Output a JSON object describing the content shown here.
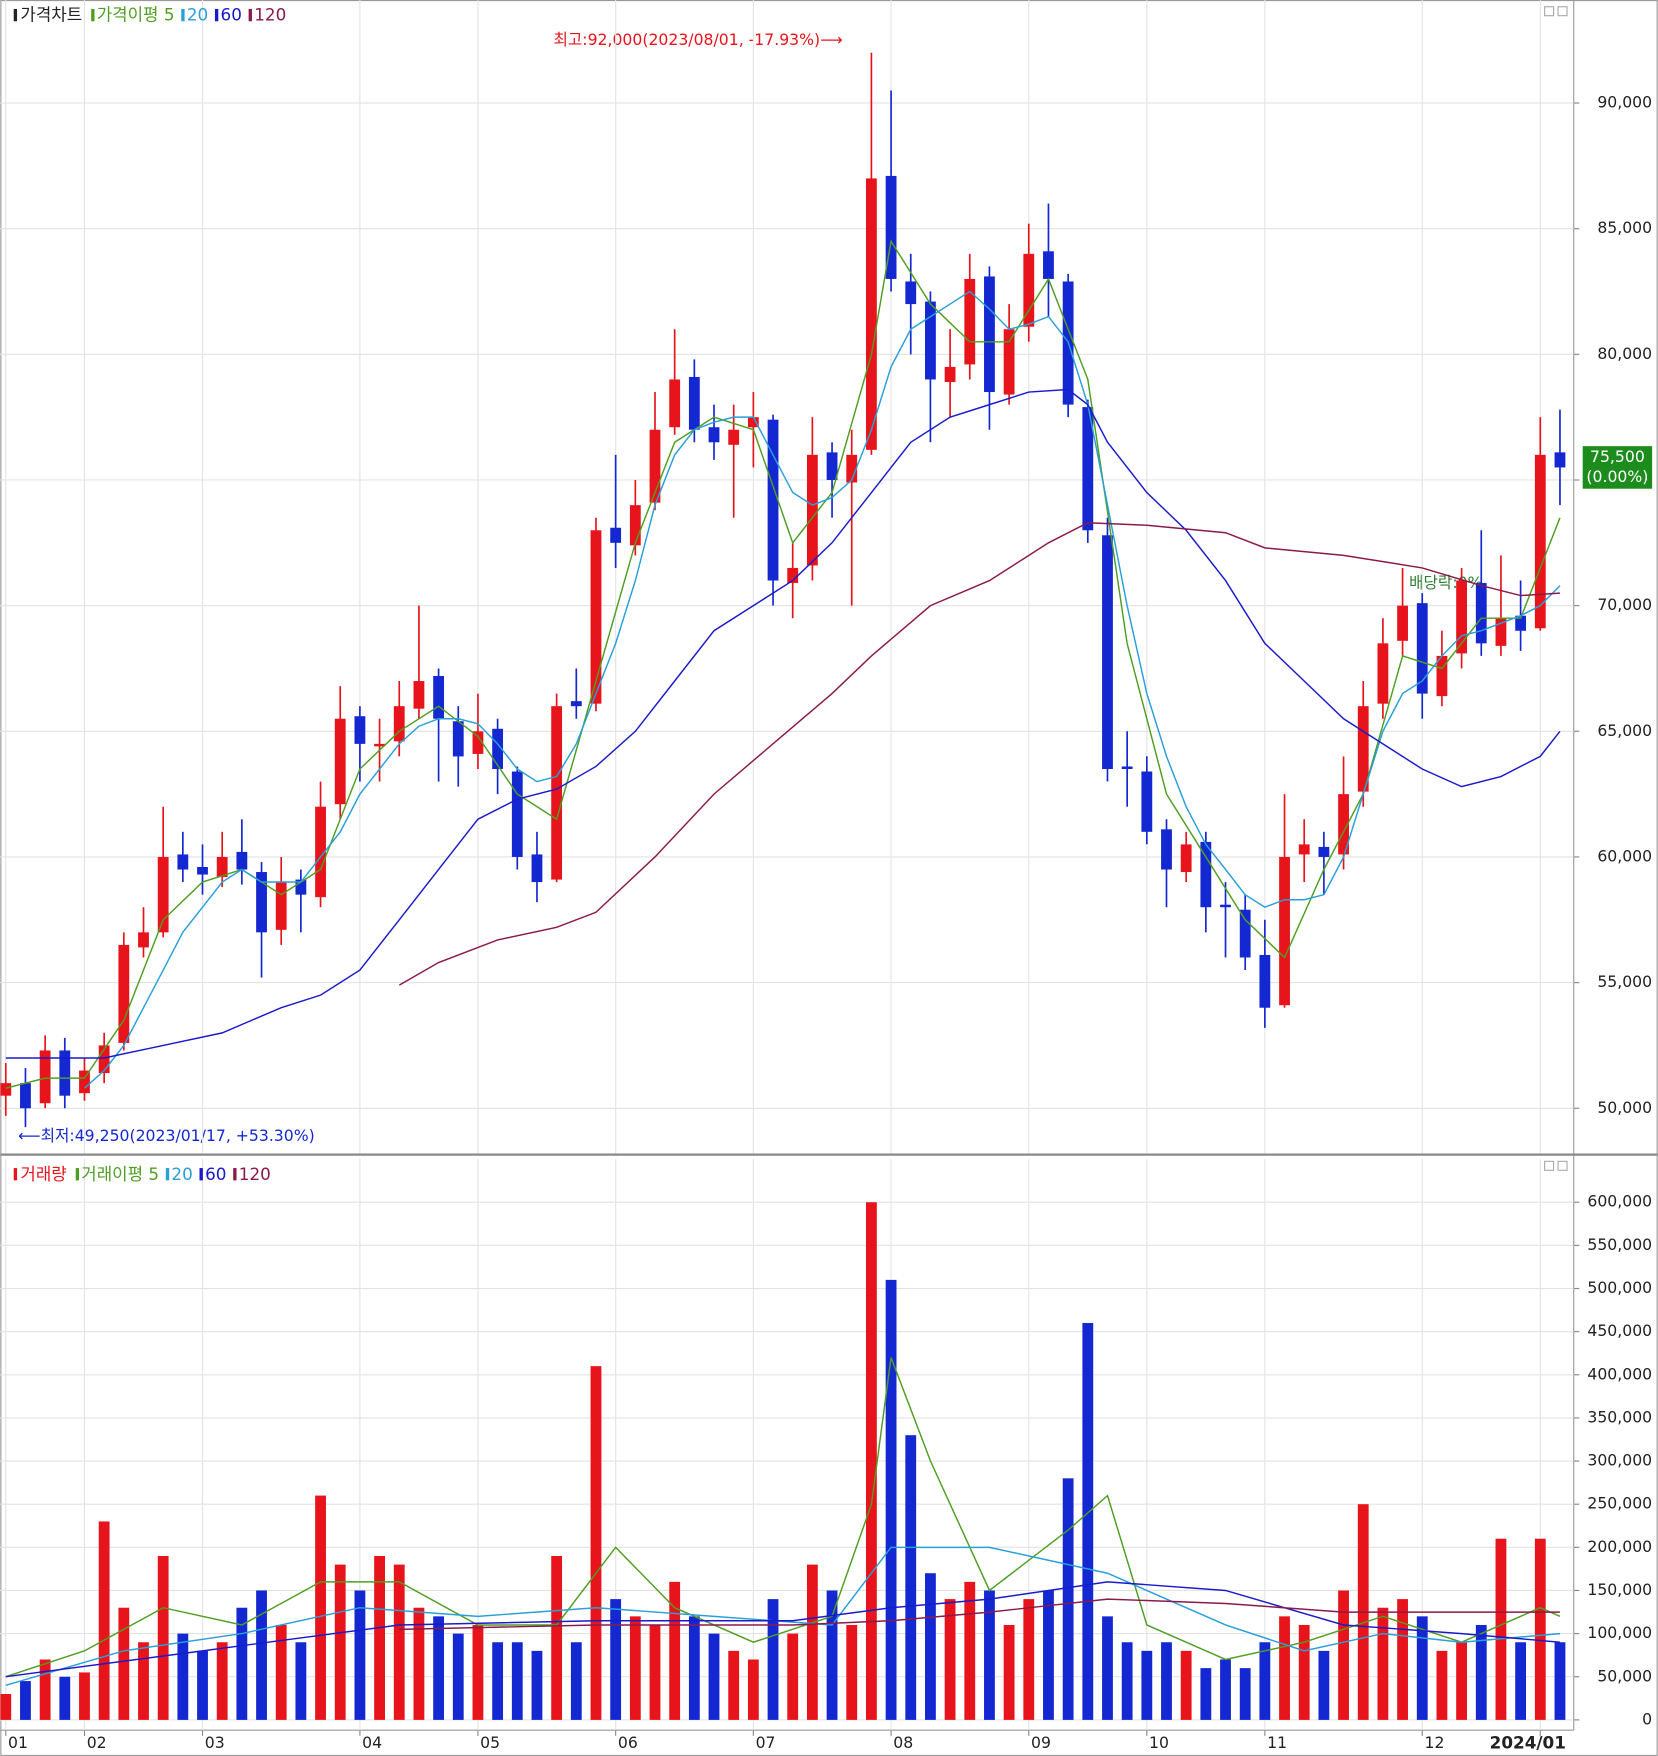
{
  "chart_data": [
    {
      "type": "candlestick",
      "title": "가격차트",
      "annotations": {
        "high": "최고:92,000(2023/08/01, -17.93%)⟶",
        "low": "⟵최저:49,250(2023/01/17, +53.30%)",
        "ex_dividend": "배당락:0%",
        "last_label": "75,500",
        "last_change": "(0.00%)"
      },
      "up_color": "#e8141b",
      "down_color": "#1428d2",
      "xlim": [
        -0.28,
        79.7
      ],
      "ylim": [
        48200,
        94100
      ],
      "yticks": [
        {
          "value": 50000,
          "label": "50,000"
        },
        {
          "value": 55000,
          "label": "55,000"
        },
        {
          "value": 60000,
          "label": "60,000"
        },
        {
          "value": 65000,
          "label": "65,000"
        },
        {
          "value": 70000,
          "label": "70,000"
        },
        {
          "value": 75000,
          "label": "75,000"
        },
        {
          "value": 80000,
          "label": "80,000"
        },
        {
          "value": 85000,
          "label": "85,000"
        },
        {
          "value": 90000,
          "label": "90,000"
        }
      ],
      "grid": true,
      "open": [
        50500,
        51000,
        50200,
        52300,
        50600,
        51400,
        52600,
        56400,
        57000,
        60100,
        59600,
        59200,
        60200,
        59400,
        57100,
        59100,
        58400,
        62100,
        65600,
        64400,
        64600,
        65900,
        67200,
        65400,
        64100,
        65100,
        63400,
        60100,
        59100,
        66200,
        66100,
        73100,
        72400,
        74100,
        77100,
        79100,
        77100,
        76400,
        77100,
        77400,
        70900,
        71600,
        76100,
        74900,
        76200,
        87100,
        82900,
        82100,
        78900,
        79600,
        83100,
        78400,
        81100,
        84100,
        82900,
        77900,
        72800,
        63600,
        63400,
        61100,
        59400,
        60600,
        58100,
        57900,
        56100,
        54100,
        60100,
        60400,
        60100,
        62600,
        66100,
        68600,
        70100,
        66400,
        68100,
        70900,
        68400,
        69600,
        69100,
        76100
      ],
      "high": [
        51800,
        51600,
        52900,
        52800,
        52000,
        53000,
        57000,
        58000,
        62000,
        61000,
        60500,
        61000,
        61500,
        59800,
        60000,
        59500,
        63000,
        66800,
        66000,
        65500,
        67000,
        70000,
        67500,
        66000,
        66500,
        65500,
        63600,
        61000,
        66500,
        67500,
        73500,
        76000,
        75000,
        78500,
        81000,
        79800,
        78000,
        78000,
        78500,
        77600,
        72500,
        77500,
        76500,
        77000,
        92000,
        90500,
        84000,
        82500,
        81000,
        84000,
        83500,
        82000,
        85200,
        86000,
        83200,
        78200,
        73500,
        65000,
        64000,
        61500,
        61000,
        61000,
        59000,
        58500,
        57500,
        62500,
        61500,
        61000,
        64000,
        67000,
        69500,
        71500,
        70500,
        69000,
        71500,
        73000,
        72000,
        71000,
        77500,
        77800
      ],
      "low": [
        49700,
        49250,
        50000,
        50000,
        50300,
        51000,
        52300,
        56000,
        56800,
        59000,
        58500,
        58800,
        58900,
        55200,
        56500,
        57000,
        58000,
        61500,
        63000,
        63000,
        64000,
        65500,
        63000,
        62800,
        63500,
        62500,
        59500,
        58200,
        59000,
        65500,
        65800,
        71500,
        72000,
        73800,
        76800,
        76500,
        75800,
        73500,
        75500,
        70000,
        69500,
        71000,
        73500,
        70000,
        76000,
        82500,
        80000,
        76500,
        77500,
        79000,
        77000,
        78000,
        80500,
        81500,
        77500,
        72500,
        63000,
        62000,
        60500,
        58000,
        59000,
        57000,
        56000,
        55500,
        53200,
        54000,
        59000,
        58500,
        59500,
        62000,
        65500,
        68000,
        65500,
        66000,
        67500,
        68000,
        68000,
        68200,
        69000,
        74000
      ],
      "close": [
        51000,
        50000,
        52300,
        50500,
        51500,
        52500,
        56500,
        57000,
        60000,
        59500,
        59300,
        60000,
        59500,
        57000,
        59000,
        58500,
        62000,
        65500,
        64500,
        64500,
        66000,
        67000,
        65500,
        64000,
        65000,
        63500,
        60000,
        59000,
        66000,
        66000,
        73000,
        72500,
        74000,
        77000,
        79000,
        77000,
        76500,
        77000,
        77500,
        71000,
        71500,
        76000,
        75000,
        76000,
        87000,
        83000,
        82000,
        79000,
        79500,
        83000,
        78500,
        81000,
        84000,
        83000,
        78000,
        73000,
        63500,
        63500,
        61000,
        59500,
        60500,
        58000,
        58000,
        56000,
        54000,
        60000,
        60500,
        60000,
        62500,
        66000,
        68500,
        70000,
        66500,
        68000,
        71000,
        68500,
        69500,
        69000,
        76000,
        75500
      ],
      "series": [
        {
          "name": "가격이평 5",
          "color": "#4f9e22",
          "x": [
            0,
            2,
            4,
            6,
            8,
            10,
            12,
            14,
            16,
            18,
            20,
            22,
            24,
            26,
            28,
            30,
            32,
            34,
            36,
            38,
            40,
            42,
            44,
            45,
            47,
            49,
            51,
            53,
            55,
            57,
            59,
            61,
            63,
            65,
            67,
            69,
            71,
            73,
            75,
            77,
            79
          ],
          "values": [
            50800,
            51200,
            51200,
            53500,
            57500,
            59000,
            59500,
            58500,
            59500,
            63500,
            65000,
            66000,
            64800,
            62500,
            61500,
            67000,
            72500,
            76500,
            77500,
            77000,
            72500,
            74500,
            80000,
            84500,
            82000,
            80500,
            80500,
            83000,
            79000,
            68500,
            62500,
            60000,
            57500,
            56000,
            59500,
            62500,
            68000,
            67500,
            69500,
            69500,
            73500
          ]
        },
        {
          "name": "20",
          "color": "#2a9fd8",
          "x": [
            4,
            5,
            6,
            7,
            8,
            9,
            10,
            11,
            12,
            13,
            14,
            15,
            16,
            17,
            18,
            19,
            20,
            21,
            22,
            23,
            24,
            25,
            26,
            27,
            28,
            29,
            30,
            31,
            32,
            33,
            34,
            35,
            36,
            37,
            38,
            39,
            40,
            41,
            42,
            43,
            44,
            45,
            46,
            47,
            48,
            49,
            50,
            51,
            52,
            53,
            54,
            55,
            56,
            57,
            58,
            59,
            60,
            61,
            62,
            63,
            64,
            65,
            66,
            67,
            68,
            69,
            70,
            71,
            72,
            73,
            74,
            75,
            76,
            77,
            78,
            79
          ],
          "values": [
            50800,
            51500,
            52500,
            54000,
            55500,
            57000,
            58000,
            59000,
            59500,
            59000,
            59000,
            59000,
            60000,
            61000,
            62500,
            63500,
            64500,
            65200,
            65500,
            65500,
            65300,
            64500,
            63500,
            63000,
            63200,
            64500,
            66500,
            68500,
            71000,
            74000,
            76000,
            77000,
            77300,
            77500,
            77500,
            76000,
            74500,
            74000,
            74300,
            75000,
            77000,
            79500,
            81000,
            81500,
            82000,
            82500,
            81800,
            81000,
            81200,
            81500,
            80500,
            78000,
            74000,
            70000,
            66500,
            64000,
            62000,
            60500,
            59500,
            58500,
            58000,
            58300,
            58300,
            58500,
            60000,
            62500,
            65000,
            66500,
            67000,
            68000,
            68800,
            69000,
            69300,
            69600,
            70000,
            70800
          ]
        },
        {
          "name": "60",
          "color": "#1a1acc",
          "x": [
            0,
            3,
            5,
            8,
            11,
            14,
            16,
            18,
            20,
            22,
            24,
            26,
            28,
            30,
            32,
            34,
            36,
            38,
            40,
            42,
            44,
            46,
            48,
            50,
            52,
            54,
            55,
            56,
            58,
            60,
            62,
            64,
            66,
            68,
            70,
            72,
            74,
            76,
            78,
            79
          ],
          "values": [
            52000,
            52000,
            52000,
            52500,
            53000,
            54000,
            54500,
            55500,
            57500,
            59500,
            61500,
            62300,
            62700,
            63600,
            65000,
            67000,
            69000,
            70000,
            71000,
            72500,
            74500,
            76500,
            77500,
            78000,
            78500,
            78600,
            78000,
            76500,
            74500,
            73000,
            71000,
            68500,
            67000,
            65500,
            64500,
            63500,
            62800,
            63200,
            64000,
            65000
          ]
        },
        {
          "name": "120",
          "color": "#8b1a4a",
          "x": [
            20,
            22,
            25,
            28,
            30,
            33,
            36,
            39,
            42,
            44,
            47,
            50,
            53,
            55,
            58,
            62,
            64,
            68,
            72,
            75,
            77,
            79
          ],
          "values": [
            54900,
            55800,
            56700,
            57200,
            57800,
            60000,
            62500,
            64500,
            66500,
            68000,
            70000,
            71000,
            72500,
            73300,
            73200,
            72900,
            72300,
            72000,
            71500,
            70800,
            70400,
            70500
          ]
        }
      ]
    },
    {
      "type": "bar",
      "title": "거래량",
      "color": "#e8141b",
      "xlim": [
        -0.28,
        79.7
      ],
      "ylim": [
        -12000,
        650000
      ],
      "xticks": [
        {
          "value": 0,
          "label": "01"
        },
        {
          "value": 4,
          "label": "02"
        },
        {
          "value": 10,
          "label": "03"
        },
        {
          "value": 18,
          "label": "04"
        },
        {
          "value": 24,
          "label": "05"
        },
        {
          "value": 31,
          "label": "06"
        },
        {
          "value": 38,
          "label": "07"
        },
        {
          "value": 45,
          "label": "08"
        },
        {
          "value": 52,
          "label": "09"
        },
        {
          "value": 58,
          "label": "10"
        },
        {
          "value": 64,
          "label": "11"
        },
        {
          "value": 72,
          "label": "12"
        },
        {
          "value": 78,
          "label": "2024/01"
        }
      ],
      "yticks": [
        0,
        {
          "value": 50000,
          "label": "50,000"
        },
        {
          "value": 100000,
          "label": "100,000"
        },
        {
          "value": 150000,
          "label": "150,000"
        },
        {
          "value": 200000,
          "label": "200,000"
        },
        {
          "value": 250000,
          "label": "250,000"
        },
        {
          "value": 300000,
          "label": "300,000"
        },
        {
          "value": 350000,
          "label": "350,000"
        },
        {
          "value": 400000,
          "label": "400,000"
        },
        {
          "value": 450000,
          "label": "450,000"
        },
        {
          "value": 500000,
          "label": "500,000"
        },
        {
          "value": 550000,
          "label": "550,000"
        },
        {
          "value": 600000,
          "label": "600,000"
        }
      ],
      "grid": true,
      "values": [
        30000,
        45000,
        70000,
        50000,
        55000,
        230000,
        130000,
        90000,
        190000,
        100000,
        80000,
        90000,
        130000,
        150000,
        110000,
        90000,
        260000,
        180000,
        150000,
        190000,
        180000,
        130000,
        120000,
        100000,
        110000,
        90000,
        90000,
        80000,
        190000,
        90000,
        410000,
        140000,
        120000,
        110000,
        160000,
        120000,
        100000,
        80000,
        70000,
        140000,
        100000,
        180000,
        150000,
        110000,
        600000,
        510000,
        330000,
        170000,
        140000,
        160000,
        150000,
        110000,
        140000,
        150000,
        280000,
        460000,
        120000,
        90000,
        80000,
        90000,
        80000,
        60000,
        70000,
        60000,
        90000,
        120000,
        110000,
        80000,
        150000,
        250000,
        130000,
        140000,
        120000,
        80000,
        90000,
        110000,
        210000,
        90000,
        210000,
        90000
      ],
      "series": [
        {
          "name": "거래이평 5",
          "color": "#4f9e22",
          "x": [
            0,
            4,
            8,
            12,
            16,
            20,
            24,
            28,
            31,
            34,
            38,
            42,
            44,
            45,
            47,
            50,
            54,
            56,
            58,
            62,
            66,
            70,
            74,
            78,
            79
          ],
          "values": [
            50000,
            80000,
            130000,
            110000,
            160000,
            160000,
            110000,
            110000,
            200000,
            130000,
            90000,
            120000,
            250000,
            420000,
            300000,
            150000,
            220000,
            260000,
            110000,
            70000,
            90000,
            120000,
            90000,
            130000,
            120000
          ]
        },
        {
          "name": "20",
          "color": "#2a9fd8",
          "x": [
            0,
            6,
            12,
            18,
            24,
            30,
            36,
            42,
            45,
            50,
            56,
            62,
            66,
            70,
            74,
            79
          ],
          "values": [
            40000,
            80000,
            100000,
            130000,
            120000,
            130000,
            120000,
            110000,
            200000,
            200000,
            170000,
            110000,
            80000,
            100000,
            90000,
            100000
          ]
        },
        {
          "name": "60",
          "color": "#1a1acc",
          "x": [
            0,
            10,
            20,
            30,
            40,
            45,
            50,
            56,
            62,
            68,
            74,
            79
          ],
          "values": [
            50000,
            80000,
            110000,
            115000,
            115000,
            130000,
            140000,
            160000,
            150000,
            110000,
            100000,
            90000
          ]
        },
        {
          "name": "120",
          "color": "#8b1a4a",
          "x": [
            20,
            30,
            40,
            45,
            50,
            56,
            62,
            68,
            74,
            79
          ],
          "values": [
            105000,
            110000,
            110000,
            115000,
            125000,
            140000,
            135000,
            125000,
            125000,
            125000
          ]
        }
      ]
    }
  ]
}
